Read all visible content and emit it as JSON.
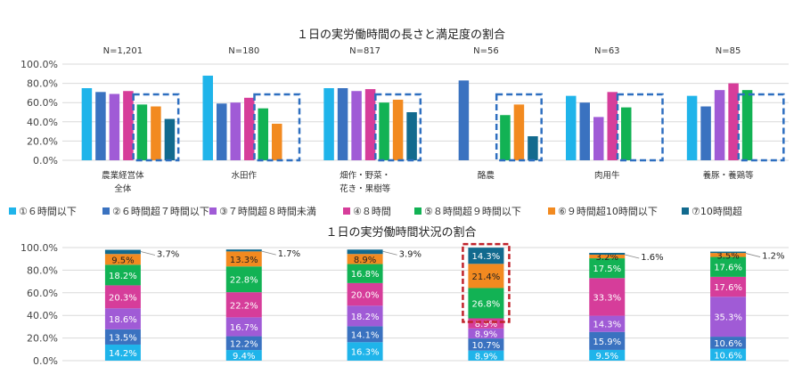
{
  "chart_data": [
    {
      "type": "bar",
      "title": "１日の実労働時間の長さと満足度の割合",
      "ylim": [
        0,
        100
      ],
      "ytick_labels": [
        "0.0%",
        "20.0%",
        "40.0%",
        "60.0%",
        "80.0%",
        "100.0%"
      ],
      "categories": [
        {
          "lines": [
            "農業経営体",
            "全体"
          ],
          "n": "N=1,201"
        },
        {
          "lines": [
            "水田作"
          ],
          "n": "N=180"
        },
        {
          "lines": [
            "畑作・野菜・",
            "花き・果樹等"
          ],
          "n": "N=817"
        },
        {
          "lines": [
            "酪農"
          ],
          "n": "N=56"
        },
        {
          "lines": [
            "肉用牛"
          ],
          "n": "N=63"
        },
        {
          "lines": [
            "養豚・養鶏等"
          ],
          "n": "N=85"
        }
      ],
      "series": [
        {
          "name": "①６時間以下",
          "color": "#1fb4ea",
          "values": [
            75,
            88,
            75,
            0,
            67,
            67
          ]
        },
        {
          "name": "②６時間超７時間以下",
          "color": "#3a72c0",
          "values": [
            71,
            59,
            75,
            83,
            60,
            56
          ]
        },
        {
          "name": "③７時間超８時間未満",
          "color": "#a05bd6",
          "values": [
            69,
            60,
            72,
            0,
            45,
            73
          ]
        },
        {
          "name": "④８時間",
          "color": "#d63d9a",
          "values": [
            72,
            65,
            74,
            0,
            71,
            80
          ]
        },
        {
          "name": "⑤８時間超９時間以下",
          "color": "#12b254",
          "values": [
            58,
            54,
            60,
            47,
            55,
            73
          ]
        },
        {
          "name": "⑥９時間超10時間以下",
          "color": "#f28a20",
          "values": [
            56,
            38,
            63,
            58,
            0,
            0
          ]
        },
        {
          "name": "⑦10時間超",
          "color": "#126a8e",
          "values": [
            43,
            0,
            50,
            25,
            0,
            0
          ]
        }
      ],
      "legend_position": "bottom",
      "grid": true,
      "highlight_boxes": "dashed blue around series ⑤–⑦ in each category"
    },
    {
      "type": "bar",
      "stacked": true,
      "title": "１日の実労働時間状況の割合",
      "ylim": [
        0,
        100
      ],
      "ytick_labels": [
        "0.0%",
        "20.0%",
        "40.0%",
        "60.0%",
        "80.0%",
        "100.0%"
      ],
      "series_order": [
        "①６時間以下",
        "②６時間超７時間以下",
        "③７時間超８時間未満",
        "④８時間",
        "⑤８時間超９時間以下",
        "⑥９時間超10時間以下",
        "⑦10時間超"
      ],
      "values": [
        [
          14.2,
          13.5,
          18.6,
          20.3,
          18.2,
          9.5,
          3.7
        ],
        [
          9.4,
          12.2,
          16.7,
          22.2,
          22.8,
          13.3,
          1.7
        ],
        [
          16.3,
          14.1,
          18.2,
          20.0,
          16.8,
          8.9,
          3.9
        ],
        [
          8.9,
          10.7,
          8.9,
          8.9,
          26.8,
          21.4,
          14.3
        ],
        [
          9.5,
          15.9,
          14.3,
          33.3,
          17.5,
          3.2,
          1.6
        ],
        [
          10.6,
          10.6,
          35.3,
          17.6,
          17.6,
          3.5,
          1.2
        ]
      ],
      "labels": [
        [
          "14.2%",
          "13.5%",
          "18.6%",
          "20.3%",
          "18.2%",
          "9.5%",
          "3.7%"
        ],
        [
          "9.4%",
          "12.2%",
          "16.7%",
          "22.2%",
          "22.8%",
          "13.3%",
          "1.7%"
        ],
        [
          "16.3%",
          "14.1%",
          "18.2%",
          "20.0%",
          "16.8%",
          "8.9%",
          "3.9%"
        ],
        [
          "8.9%",
          "10.7%",
          "8.9%",
          "8.9%",
          "26.8%",
          "21.4%",
          "14.3%"
        ],
        [
          "9.5%",
          "15.9%",
          "14.3%",
          "33.3%",
          "17.5%",
          "3.2%",
          "1.6%"
        ],
        [
          "10.6%",
          "10.6%",
          "35.3%",
          "17.6%",
          "17.6%",
          "3.5%",
          "1.2%"
        ]
      ],
      "highlight_box": "dashed red around 酪農 top segments"
    }
  ]
}
